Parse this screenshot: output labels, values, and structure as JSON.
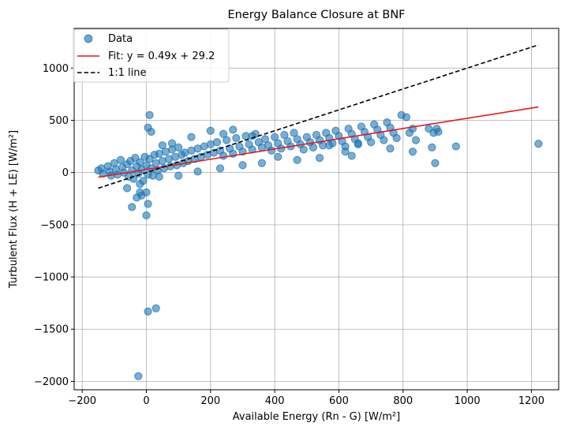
{
  "chart_data": {
    "type": "scatter",
    "title": "Energy Balance Closure at BNF",
    "xlabel": "Available Energy (Rn - G) [W/m²]",
    "ylabel": "Turbulent Flux (H + LE) [W/m²]",
    "xlim": [
      -225,
      1285
    ],
    "ylim": [
      -2080,
      1380
    ],
    "xticks": [
      -200,
      0,
      200,
      400,
      600,
      800,
      1000,
      1200
    ],
    "xtick_labels": [
      "−200",
      "0",
      "200",
      "400",
      "600",
      "800",
      "1000",
      "1200"
    ],
    "yticks": [
      -2000,
      -1500,
      -1000,
      -500,
      0,
      500,
      1000
    ],
    "ytick_labels": [
      "−2000",
      "−1500",
      "−1000",
      "−500",
      "0",
      "500",
      "1000"
    ],
    "grid": true,
    "legend_position": "upper-left",
    "series": [
      {
        "name": "Data",
        "kind": "scatter",
        "color": "#1f77b4",
        "points": [
          [
            -150,
            20
          ],
          [
            -140,
            40
          ],
          [
            -135,
            -10
          ],
          [
            -120,
            60
          ],
          [
            -115,
            10
          ],
          [
            -110,
            -30
          ],
          [
            -100,
            90
          ],
          [
            -95,
            30
          ],
          [
            -90,
            -20
          ],
          [
            -80,
            120
          ],
          [
            -75,
            50
          ],
          [
            -70,
            0
          ],
          [
            -60,
            80
          ],
          [
            -55,
            -40
          ],
          [
            -50,
            110
          ],
          [
            -45,
            20
          ],
          [
            -40,
            -60
          ],
          [
            -35,
            140
          ],
          [
            -30,
            60
          ],
          [
            -25,
            -10
          ],
          [
            -20,
            100
          ],
          [
            -15,
            30
          ],
          [
            -10,
            -80
          ],
          [
            -5,
            150
          ],
          [
            0,
            70
          ],
          [
            5,
            -20
          ],
          [
            10,
            130
          ],
          [
            15,
            40
          ],
          [
            20,
            -30
          ],
          [
            25,
            170
          ],
          [
            30,
            90
          ],
          [
            35,
            20
          ],
          [
            40,
            180
          ],
          [
            50,
            110
          ],
          [
            55,
            40
          ],
          [
            60,
            200
          ],
          [
            70,
            130
          ],
          [
            75,
            60
          ],
          [
            80,
            220
          ],
          [
            90,
            150
          ],
          [
            95,
            70
          ],
          [
            100,
            240
          ],
          [
            110,
            170
          ],
          [
            115,
            90
          ],
          [
            120,
            190
          ],
          [
            130,
            110
          ],
          [
            140,
            210
          ],
          [
            150,
            130
          ],
          [
            160,
            230
          ],
          [
            170,
            150
          ],
          [
            180,
            250
          ],
          [
            190,
            170
          ],
          [
            200,
            270
          ],
          [
            210,
            190
          ],
          [
            220,
            290
          ],
          [
            230,
            210
          ],
          [
            240,
            160
          ],
          [
            250,
            310
          ],
          [
            260,
            230
          ],
          [
            270,
            180
          ],
          [
            280,
            330
          ],
          [
            290,
            250
          ],
          [
            300,
            200
          ],
          [
            310,
            350
          ],
          [
            320,
            270
          ],
          [
            330,
            220
          ],
          [
            340,
            370
          ],
          [
            350,
            290
          ],
          [
            360,
            240
          ],
          [
            370,
            320
          ],
          [
            380,
            260
          ],
          [
            390,
            210
          ],
          [
            400,
            340
          ],
          [
            410,
            280
          ],
          [
            420,
            230
          ],
          [
            430,
            360
          ],
          [
            440,
            300
          ],
          [
            450,
            250
          ],
          [
            460,
            380
          ],
          [
            470,
            320
          ],
          [
            480,
            270
          ],
          [
            490,
            220
          ],
          [
            500,
            340
          ],
          [
            510,
            290
          ],
          [
            520,
            240
          ],
          [
            530,
            360
          ],
          [
            540,
            310
          ],
          [
            550,
            260
          ],
          [
            560,
            380
          ],
          [
            570,
            330
          ],
          [
            580,
            280
          ],
          [
            590,
            400
          ],
          [
            600,
            350
          ],
          [
            610,
            300
          ],
          [
            620,
            250
          ],
          [
            630,
            420
          ],
          [
            640,
            370
          ],
          [
            650,
            320
          ],
          [
            660,
            270
          ],
          [
            670,
            440
          ],
          [
            680,
            390
          ],
          [
            690,
            340
          ],
          [
            700,
            290
          ],
          [
            710,
            460
          ],
          [
            720,
            410
          ],
          [
            730,
            360
          ],
          [
            740,
            310
          ],
          [
            750,
            480
          ],
          [
            760,
            430
          ],
          [
            770,
            380
          ],
          [
            780,
            330
          ],
          [
            795,
            550
          ],
          [
            810,
            530
          ],
          [
            820,
            380
          ],
          [
            830,
            420
          ],
          [
            840,
            310
          ],
          [
            880,
            420
          ],
          [
            890,
            240
          ],
          [
            895,
            380
          ],
          [
            900,
            90
          ],
          [
            905,
            420
          ],
          [
            910,
            390
          ],
          [
            965,
            250
          ],
          [
            1222,
            275
          ],
          [
            830,
            200
          ],
          [
            10,
            550
          ],
          [
            5,
            430
          ],
          [
            15,
            390
          ],
          [
            -30,
            -240
          ],
          [
            -15,
            -220
          ],
          [
            -20,
            -110
          ],
          [
            -45,
            -330
          ],
          [
            5,
            -300
          ],
          [
            0,
            -410
          ],
          [
            0,
            -190
          ],
          [
            5,
            -1330
          ],
          [
            30,
            -1300
          ],
          [
            -25,
            -1950
          ],
          [
            200,
            400
          ],
          [
            140,
            340
          ],
          [
            80,
            280
          ],
          [
            50,
            260
          ],
          [
            270,
            410
          ],
          [
            330,
            350
          ],
          [
            230,
            40
          ],
          [
            160,
            10
          ],
          [
            300,
            70
          ],
          [
            360,
            90
          ],
          [
            470,
            120
          ],
          [
            540,
            140
          ],
          [
            640,
            160
          ],
          [
            760,
            230
          ],
          [
            660,
            280
          ],
          [
            240,
            370
          ],
          [
            570,
            260
          ],
          [
            -60,
            -150
          ],
          [
            -20,
            -190
          ],
          [
            40,
            -40
          ],
          [
            100,
            -30
          ],
          [
            620,
            200
          ],
          [
            410,
            150
          ]
        ]
      },
      {
        "name": "Fit: y = 0.49x + 29.2",
        "kind": "line",
        "color": "#e31a1c",
        "points": [
          [
            -150,
            -44.3
          ],
          [
            1222,
            628.0
          ]
        ]
      },
      {
        "name": "1:1 line",
        "kind": "dashed-line",
        "color": "#000000",
        "points": [
          [
            -150,
            -150
          ],
          [
            1222,
            1222
          ]
        ]
      }
    ]
  }
}
